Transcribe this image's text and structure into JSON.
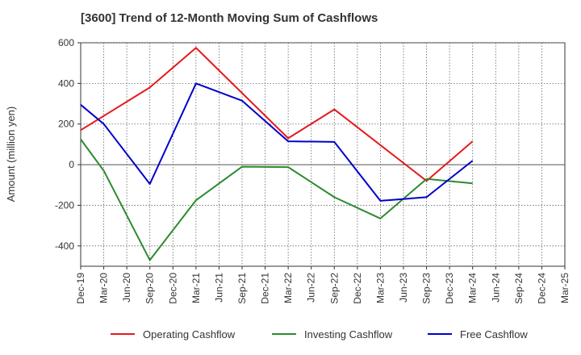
{
  "title": "[3600]  Trend of 12-Month Moving Sum of Cashflows",
  "chart_data": {
    "type": "line",
    "title": "[3600]  Trend of 12-Month Moving Sum of Cashflows",
    "ylabel": "Amount (million yen)",
    "xlabel": "",
    "ylim": [
      -500,
      600
    ],
    "yticks": [
      600,
      400,
      200,
      0,
      -200,
      -400
    ],
    "ytick_labels": [
      "600",
      "400",
      "200",
      "0",
      "-200",
      "-400"
    ],
    "categories": [
      "Dec-19",
      "Mar-20",
      "Jun-20",
      "Sep-20",
      "Dec-20",
      "Mar-21",
      "Jun-21",
      "Sep-21",
      "Dec-21",
      "Mar-22",
      "Jun-22",
      "Sep-22",
      "Dec-22",
      "Mar-23",
      "Jun-23",
      "Sep-23",
      "Dec-23",
      "Mar-24",
      "Jun-24",
      "Sep-24",
      "Dec-24",
      "Mar-25"
    ],
    "grid": true,
    "legend_position": "bottom",
    "series": [
      {
        "name": "Operating Cashflow",
        "color": "#e41a1c",
        "values": [
          170,
          null,
          null,
          380,
          null,
          575,
          null,
          null,
          null,
          130,
          null,
          272,
          null,
          null,
          null,
          -80,
          null,
          115,
          null,
          null,
          null,
          null
        ]
      },
      {
        "name": "Investing Cashflow",
        "color": "#2e8b2e",
        "values": [
          125,
          -30,
          null,
          -470,
          null,
          -175,
          null,
          -10,
          null,
          -12,
          null,
          -160,
          null,
          -265,
          null,
          -70,
          null,
          -92,
          null,
          null,
          null,
          null
        ]
      },
      {
        "name": "Free Cashflow",
        "color": "#0000cc",
        "values": [
          295,
          200,
          null,
          -95,
          null,
          400,
          null,
          315,
          null,
          115,
          null,
          112,
          null,
          -178,
          null,
          -160,
          null,
          20,
          null,
          null,
          null,
          null
        ]
      }
    ]
  }
}
